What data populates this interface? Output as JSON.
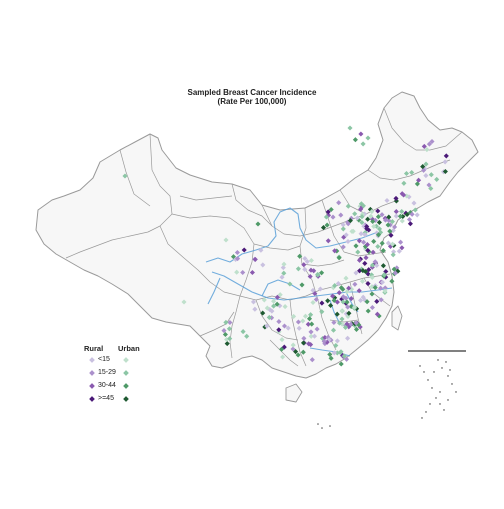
{
  "title": {
    "line1": "Sampled Breast Cancer Incidence",
    "line2": "(Rate Per 100,000)"
  },
  "legend": {
    "rural_header": "Rural",
    "urban_header": "Urban",
    "items": [
      {
        "label": "<15",
        "rural_color": "#c9c1e0",
        "urban_color": "#bfe0cc"
      },
      {
        "label": "15-29",
        "rural_color": "#ab90cc",
        "urban_color": "#8cc6a5"
      },
      {
        "label": "30-44",
        "rural_color": "#8a5aaf",
        "urban_color": "#4f9a68"
      },
      {
        "label": ">=45",
        "rural_color": "#4b1a78",
        "urban_color": "#1f5a32"
      }
    ]
  },
  "colors": {
    "land_fill": "#f7f7f7",
    "border": "#9a9a9a",
    "river": "#5aa0d8",
    "scale_bar": "#000000"
  }
}
